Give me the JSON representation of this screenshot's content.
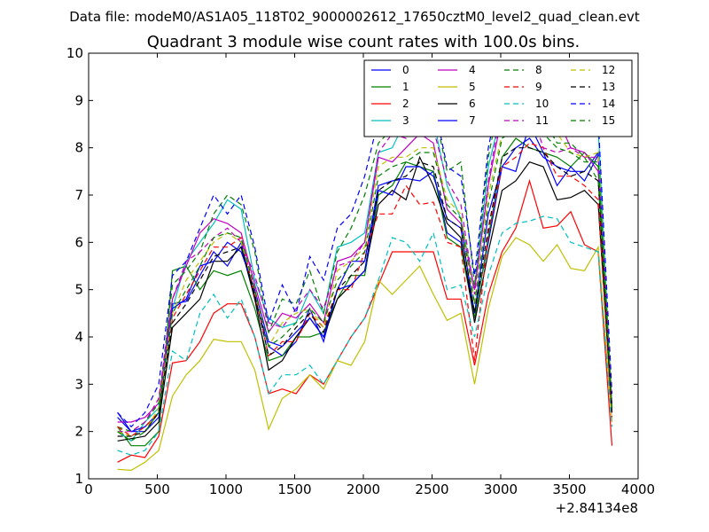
{
  "chart_data": {
    "type": "line",
    "suptitle": "Data file: modeM0/AS1A05_118T02_9000002612_17650cztM0_level2_quad_clean.evt",
    "title": "Quadrant 3 module wise count rates with 100.0s bins.",
    "xlabel": "",
    "ylabel": "",
    "x_offset_label": "+2.84134e8",
    "xlim": [
      0,
      4000
    ],
    "ylim": [
      1,
      10
    ],
    "xticks": [
      0,
      500,
      1000,
      1500,
      2000,
      2500,
      3000,
      3500,
      4000
    ],
    "xtick_labels": [
      "0",
      "500",
      "1000",
      "1500",
      "2000",
      "2500",
      "3000",
      "3500",
      "4000"
    ],
    "yticks": [
      1,
      2,
      3,
      4,
      5,
      6,
      7,
      8,
      9,
      10
    ],
    "ytick_labels": [
      "1",
      "2",
      "3",
      "4",
      "5",
      "6",
      "7",
      "8",
      "9",
      "10"
    ],
    "grid": false,
    "legend_position": "top-right",
    "legend_columns": 4,
    "x": [
      210,
      310,
      410,
      510,
      610,
      710,
      810,
      910,
      1010,
      1110,
      1210,
      1310,
      1410,
      1510,
      1610,
      1710,
      1810,
      1910,
      2010,
      2110,
      2210,
      2310,
      2410,
      2510,
      2610,
      2710,
      2810,
      2910,
      3010,
      3110,
      3210,
      3310,
      3410,
      3510,
      3610,
      3710,
      3810
    ],
    "series": [
      {
        "name": "0",
        "color": "#0000ff",
        "dash": "solid",
        "values": [
          2.3,
          2.0,
          2.0,
          2.3,
          4.7,
          4.75,
          5.3,
          5.8,
          5.5,
          6.0,
          4.8,
          3.8,
          3.6,
          3.9,
          4.6,
          3.9,
          5.0,
          5.6,
          5.6,
          7.2,
          7.3,
          7.35,
          7.3,
          7.5,
          6.2,
          6.0,
          4.5,
          6.0,
          7.6,
          8.0,
          8.2,
          7.8,
          7.6,
          7.5,
          7.5,
          7.9,
          2.4
        ]
      },
      {
        "name": "1",
        "color": "#008000",
        "dash": "solid",
        "values": [
          2.1,
          1.7,
          1.7,
          2.0,
          5.4,
          5.5,
          5.0,
          5.4,
          5.3,
          5.4,
          4.6,
          3.5,
          3.6,
          4.0,
          4.0,
          4.1,
          4.8,
          5.3,
          5.3,
          7.0,
          7.2,
          7.7,
          7.6,
          7.5,
          6.1,
          5.9,
          4.4,
          6.1,
          7.8,
          8.2,
          8.0,
          7.9,
          7.8,
          7.6,
          7.9,
          7.6,
          2.5
        ]
      },
      {
        "name": "2",
        "color": "#ff0000",
        "dash": "solid",
        "values": [
          1.35,
          1.5,
          1.45,
          1.9,
          3.45,
          3.5,
          3.9,
          4.5,
          4.7,
          4.7,
          4.0,
          2.8,
          2.9,
          2.8,
          3.2,
          3.0,
          3.5,
          4.0,
          4.4,
          5.1,
          5.8,
          5.8,
          5.8,
          5.8,
          4.8,
          4.8,
          3.4,
          4.9,
          5.8,
          6.3,
          7.3,
          6.3,
          6.35,
          6.65,
          5.95,
          5.8,
          1.7
        ]
      },
      {
        "name": "3",
        "color": "#00bfbf",
        "dash": "solid",
        "values": [
          2.0,
          1.8,
          2.2,
          2.5,
          4.6,
          5.6,
          6.0,
          6.4,
          6.9,
          6.7,
          5.2,
          4.4,
          4.2,
          4.3,
          5.0,
          4.5,
          5.9,
          6.0,
          6.2,
          7.9,
          8.0,
          8.6,
          8.7,
          8.6,
          7.2,
          6.5,
          5.0,
          7.6,
          8.8,
          8.8,
          9.0,
          8.5,
          8.6,
          8.7,
          8.3,
          8.4,
          2.5
        ]
      },
      {
        "name": "4",
        "color": "#bf00bf",
        "dash": "solid",
        "values": [
          2.2,
          2.2,
          2.3,
          2.6,
          4.8,
          5.5,
          6.2,
          6.5,
          6.4,
          6.2,
          5.1,
          4.1,
          4.5,
          4.4,
          4.7,
          4.3,
          5.6,
          5.7,
          6.0,
          7.8,
          7.7,
          8.0,
          8.3,
          8.1,
          6.7,
          6.4,
          5.0,
          7.2,
          8.7,
          8.7,
          8.6,
          8.6,
          8.65,
          8.0,
          7.9,
          7.5,
          2.5
        ]
      },
      {
        "name": "5",
        "color": "#bfbf00",
        "dash": "solid",
        "values": [
          1.2,
          1.18,
          1.35,
          1.6,
          2.75,
          3.2,
          3.5,
          3.95,
          3.9,
          3.9,
          3.3,
          2.05,
          2.7,
          2.9,
          3.2,
          2.9,
          3.5,
          3.4,
          3.9,
          5.2,
          4.9,
          5.2,
          5.5,
          4.9,
          4.35,
          4.5,
          3.0,
          4.6,
          5.7,
          6.1,
          5.95,
          5.6,
          5.95,
          5.45,
          5.4,
          5.9,
          2.2
        ]
      },
      {
        "name": "6",
        "color": "#000000",
        "dash": "solid",
        "values": [
          1.8,
          1.85,
          1.9,
          2.2,
          4.2,
          4.5,
          4.8,
          5.6,
          5.6,
          5.9,
          4.8,
          3.3,
          3.5,
          4.0,
          4.4,
          4.0,
          4.8,
          5.1,
          5.4,
          6.8,
          7.1,
          6.9,
          7.8,
          7.2,
          6.4,
          6.1,
          4.3,
          5.8,
          7.1,
          7.3,
          7.7,
          7.6,
          6.9,
          6.95,
          7.1,
          6.8,
          2.4
        ]
      },
      {
        "name": "7",
        "color": "#0000ff",
        "dash": "solid",
        "values": [
          2.4,
          2.0,
          2.1,
          2.4,
          4.6,
          4.8,
          5.5,
          5.6,
          6.0,
          5.8,
          5.0,
          3.9,
          3.8,
          4.1,
          4.4,
          4.0,
          5.0,
          5.1,
          5.4,
          7.1,
          7.0,
          7.6,
          7.6,
          7.4,
          6.5,
          6.3,
          4.5,
          6.6,
          7.6,
          7.5,
          8.5,
          7.9,
          7.2,
          7.6,
          7.3,
          7.85,
          2.5
        ]
      },
      {
        "name": "8",
        "color": "#008000",
        "dash": "dashed",
        "values": [
          2.1,
          2.0,
          2.2,
          2.6,
          5.1,
          5.4,
          5.8,
          6.6,
          7.0,
          6.8,
          5.8,
          4.1,
          4.8,
          4.7,
          5.4,
          4.5,
          5.8,
          6.3,
          7.0,
          8.1,
          8.4,
          8.7,
          8.8,
          8.9,
          7.5,
          7.7,
          5.1,
          7.8,
          9.3,
          9.4,
          8.9,
          8.6,
          8.1,
          8.1,
          7.8,
          7.3,
          2.5
        ]
      },
      {
        "name": "9",
        "color": "#ff0000",
        "dash": "dashed",
        "values": [
          2.1,
          1.9,
          2.1,
          2.4,
          4.4,
          4.9,
          5.4,
          5.9,
          5.9,
          6.1,
          4.9,
          3.6,
          3.9,
          3.9,
          4.5,
          4.2,
          5.0,
          5.0,
          5.8,
          6.6,
          6.6,
          7.2,
          6.8,
          6.85,
          6.0,
          5.9,
          3.5,
          6.2,
          7.6,
          7.8,
          8.1,
          8.0,
          7.4,
          7.4,
          7.2,
          6.9,
          2.3
        ]
      },
      {
        "name": "10",
        "color": "#00bfbf",
        "dash": "dashed",
        "values": [
          1.6,
          1.5,
          1.6,
          2.0,
          3.7,
          3.5,
          4.5,
          4.9,
          4.4,
          4.8,
          4.0,
          2.8,
          3.2,
          3.2,
          3.4,
          3.0,
          3.5,
          4.0,
          4.4,
          5.2,
          6.1,
          6.0,
          5.6,
          6.2,
          5.0,
          5.1,
          4.0,
          5.3,
          6.2,
          6.4,
          6.45,
          6.55,
          6.5,
          6.0,
          5.9,
          5.8,
          2.1
        ]
      },
      {
        "name": "11",
        "color": "#bf00bf",
        "dash": "dashed",
        "values": [
          2.0,
          2.0,
          2.2,
          2.7,
          4.8,
          5.6,
          5.8,
          6.1,
          6.3,
          6.0,
          5.3,
          4.3,
          4.2,
          4.6,
          5.0,
          4.6,
          5.5,
          5.6,
          6.0,
          7.9,
          8.3,
          8.2,
          8.7,
          8.4,
          7.3,
          6.8,
          4.9,
          7.3,
          8.9,
          9.0,
          8.9,
          8.0,
          7.9,
          8.0,
          7.8,
          7.8,
          2.6
        ]
      },
      {
        "name": "12",
        "color": "#bfbf00",
        "dash": "dashed",
        "values": [
          2.0,
          1.9,
          2.0,
          2.5,
          4.5,
          5.2,
          5.6,
          6.0,
          6.2,
          6.0,
          5.0,
          3.8,
          4.3,
          4.5,
          4.6,
          4.2,
          5.4,
          5.6,
          5.9,
          7.6,
          7.8,
          7.8,
          8.0,
          8.0,
          6.9,
          6.6,
          4.7,
          7.0,
          8.3,
          8.6,
          8.6,
          8.4,
          8.3,
          7.9,
          7.8,
          7.9,
          2.5
        ]
      },
      {
        "name": "13",
        "color": "#000000",
        "dash": "dashed",
        "values": [
          1.9,
          1.9,
          2.0,
          2.4,
          4.3,
          4.7,
          5.2,
          5.7,
          5.8,
          5.9,
          4.9,
          3.6,
          3.8,
          4.2,
          4.5,
          4.1,
          5.0,
          5.3,
          5.6,
          7.1,
          7.3,
          7.4,
          7.7,
          7.6,
          6.5,
          6.3,
          4.5,
          6.3,
          7.8,
          8.0,
          8.0,
          7.9,
          7.6,
          7.4,
          7.5,
          7.3,
          2.4
        ]
      },
      {
        "name": "14",
        "color": "#0000ff",
        "dash": "dashed",
        "values": [
          2.4,
          2.1,
          2.4,
          3.0,
          5.3,
          5.6,
          6.3,
          7.0,
          6.6,
          7.0,
          5.9,
          4.3,
          5.1,
          4.5,
          5.7,
          5.2,
          6.3,
          6.6,
          7.4,
          8.6,
          8.7,
          8.8,
          9.1,
          9.0,
          7.6,
          7.4,
          5.3,
          8.0,
          9.4,
          9.4,
          9.5,
          9.4,
          8.9,
          8.8,
          8.5,
          8.6,
          2.8
        ]
      },
      {
        "name": "15",
        "color": "#008000",
        "dash": "dashed",
        "values": [
          2.0,
          1.8,
          2.0,
          2.4,
          4.5,
          5.0,
          5.5,
          6.1,
          6.2,
          6.1,
          5.0,
          3.8,
          4.0,
          4.3,
          4.6,
          4.3,
          5.2,
          5.5,
          5.8,
          7.4,
          7.6,
          7.7,
          7.9,
          7.9,
          6.8,
          6.5,
          4.7,
          6.8,
          8.2,
          8.4,
          8.5,
          8.3,
          8.0,
          7.9,
          7.7,
          7.7,
          2.5
        ]
      }
    ]
  }
}
